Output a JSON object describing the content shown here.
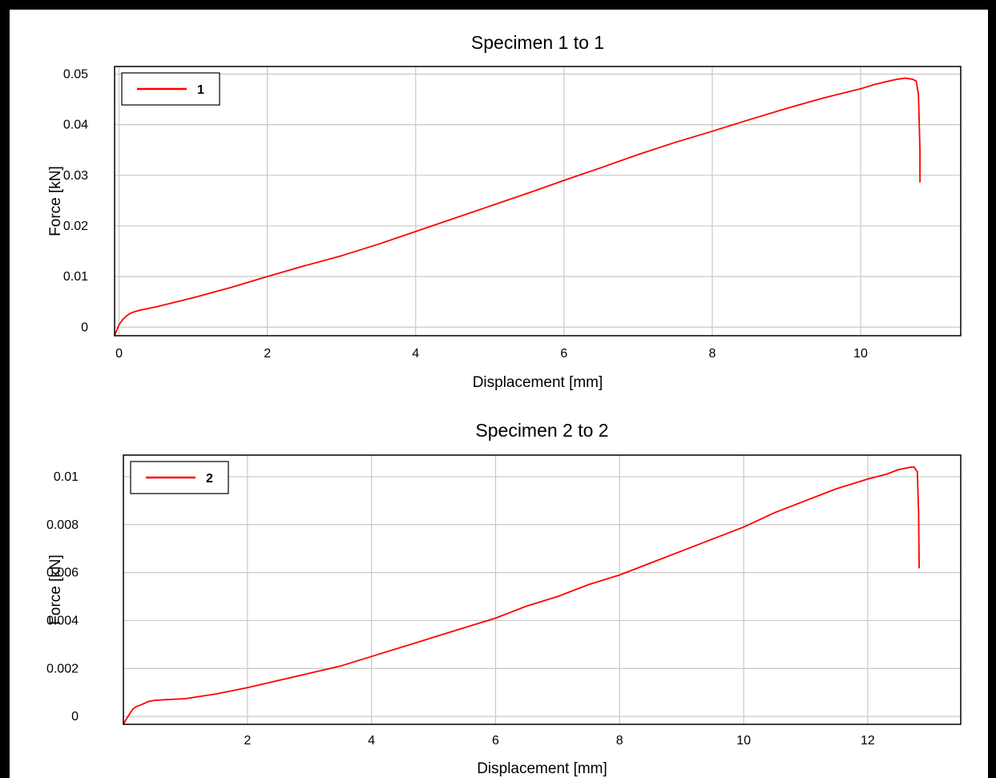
{
  "colors": {
    "series": "#ff0000",
    "grid": "#c8c8c8",
    "frame": "#000000"
  },
  "chart_data": [
    {
      "type": "line",
      "title": "Specimen 1 to 1",
      "xlabel": "Displacement [mm]",
      "ylabel": "Force [kN]",
      "xlim": [
        -0.06,
        11.35
      ],
      "ylim": [
        -0.0017,
        0.0515
      ],
      "xticks": [
        0,
        2,
        4,
        6,
        8,
        10
      ],
      "xtick_labels": [
        "0",
        "2",
        "4",
        "6",
        "8",
        "10"
      ],
      "yticks": [
        0,
        0.01,
        0.02,
        0.03,
        0.04,
        0.05
      ],
      "ytick_labels": [
        "0",
        "0.01",
        "0.02",
        "0.03",
        "0.04",
        "0.05"
      ],
      "grid": true,
      "legend_position": "top-left",
      "series": [
        {
          "name": "1",
          "color": "#ff0000",
          "x": [
            -0.06,
            0.0,
            0.05,
            0.1,
            0.15,
            0.2,
            0.3,
            0.5,
            1.0,
            1.5,
            2.0,
            2.5,
            3.0,
            3.5,
            4.0,
            4.5,
            5.0,
            5.5,
            6.0,
            6.5,
            7.0,
            7.5,
            8.0,
            8.5,
            9.0,
            9.5,
            10.0,
            10.2,
            10.4,
            10.5,
            10.6,
            10.65,
            10.7,
            10.75,
            10.78,
            10.8,
            10.8
          ],
          "y": [
            -0.0017,
            0.0005,
            0.0015,
            0.0022,
            0.0027,
            0.003,
            0.0034,
            0.004,
            0.0058,
            0.0078,
            0.01,
            0.0121,
            0.0141,
            0.0164,
            0.0189,
            0.0214,
            0.0239,
            0.0264,
            0.029,
            0.0315,
            0.0341,
            0.0365,
            0.0387,
            0.041,
            0.0432,
            0.0453,
            0.0471,
            0.048,
            0.0487,
            0.049,
            0.0492,
            0.0491,
            0.049,
            0.0486,
            0.046,
            0.035,
            0.0287
          ]
        }
      ]
    },
    {
      "type": "line",
      "title": "Specimen 2 to 2",
      "xlabel": "Displacement [mm]",
      "ylabel": "Force [kN]",
      "xlim": [
        0,
        13.5
      ],
      "ylim": [
        -0.00033,
        0.0109
      ],
      "xticks": [
        2,
        4,
        6,
        8,
        10,
        12
      ],
      "xtick_labels": [
        "2",
        "4",
        "6",
        "8",
        "10",
        "12"
      ],
      "yticks": [
        0,
        0.002,
        0.004,
        0.006,
        0.008,
        0.01
      ],
      "ytick_labels": [
        "0",
        "0.002",
        "0.004",
        "0.006",
        "0.008",
        "0.01"
      ],
      "grid": true,
      "legend_position": "top-left",
      "series": [
        {
          "name": "2",
          "color": "#ff0000",
          "x": [
            0.0,
            0.05,
            0.1,
            0.15,
            0.2,
            0.3,
            0.4,
            0.5,
            0.7,
            1.0,
            1.5,
            2.0,
            2.5,
            3.0,
            3.5,
            4.0,
            4.5,
            5.0,
            5.5,
            6.0,
            6.5,
            7.0,
            7.5,
            8.0,
            8.5,
            9.0,
            9.5,
            10.0,
            10.5,
            11.0,
            11.5,
            12.0,
            12.3,
            12.5,
            12.7,
            12.75,
            12.8,
            12.82,
            12.83
          ],
          "y": [
            -0.00033,
            -0.0001,
            0.0001,
            0.0003,
            0.0004,
            0.0005,
            0.00062,
            0.00067,
            0.0007,
            0.00074,
            0.00094,
            0.0012,
            0.0015,
            0.0018,
            0.0021,
            0.0025,
            0.0029,
            0.0033,
            0.0037,
            0.0041,
            0.0046,
            0.005,
            0.0055,
            0.0059,
            0.0064,
            0.0069,
            0.0074,
            0.0079,
            0.0085,
            0.009,
            0.0095,
            0.0099,
            0.0101,
            0.0103,
            0.0104,
            0.0104,
            0.0102,
            0.0085,
            0.0062
          ]
        }
      ]
    }
  ]
}
